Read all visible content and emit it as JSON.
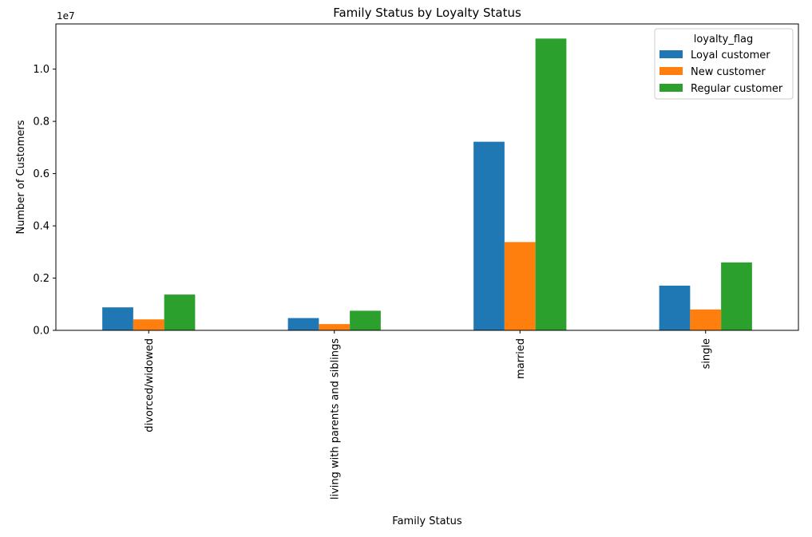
{
  "chart_data": {
    "type": "bar",
    "title": "Family Status by Loyalty Status",
    "xlabel": "Family Status",
    "ylabel": "Number of Customers",
    "offset_label": "1e7",
    "categories": [
      "divorced/widowed",
      "living with parents and siblings",
      "married",
      "single"
    ],
    "series": [
      {
        "name": "Loyal customer",
        "color": "#1f77b4",
        "values": [
          0.088,
          0.047,
          0.722,
          0.171
        ]
      },
      {
        "name": "New customer",
        "color": "#ff7f0e",
        "values": [
          0.042,
          0.024,
          0.338,
          0.08
        ]
      },
      {
        "name": "Regular customer",
        "color": "#2ca02c",
        "values": [
          0.137,
          0.075,
          1.117,
          0.26
        ]
      }
    ],
    "yticks": [
      0.0,
      0.2,
      0.4,
      0.6,
      0.8,
      1.0
    ],
    "ytick_labels": [
      "0.0",
      "0.2",
      "0.4",
      "0.6",
      "0.8",
      "1.0"
    ],
    "ylim": [
      0,
      1.173
    ],
    "legend": {
      "title": "loyalty_flag",
      "position": "top-right"
    },
    "grid": false
  }
}
